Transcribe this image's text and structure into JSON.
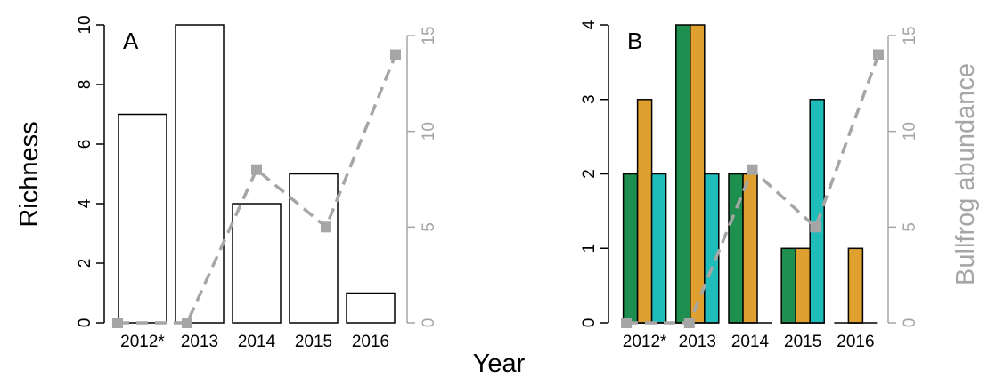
{
  "labels": {
    "y_left": "Richness",
    "y_right": "Bullfrog abundance",
    "x": "Year"
  },
  "colors": {
    "axis": "#000000",
    "right_axis": "#a6a6a6",
    "abundance_line": "#a6a6a6",
    "bar_outline": "#000000"
  },
  "chart_data": [
    {
      "type": "bar",
      "panel_label": "A",
      "categories": [
        "2012*",
        "2013",
        "2014",
        "2015",
        "2016"
      ],
      "ylabel": "Richness",
      "ylim": [
        0,
        10
      ],
      "yticks": [
        0,
        2,
        4,
        6,
        8,
        10
      ],
      "series": [
        {
          "values": [
            7,
            10,
            4,
            5,
            1
          ],
          "color": "#ffffff"
        }
      ],
      "overlay": {
        "type": "line",
        "style": "dashed",
        "marker": "square",
        "color": "#a6a6a6",
        "values": [
          0,
          0,
          8,
          5,
          14
        ],
        "ylabel": "Bullfrog abundance",
        "ylim": [
          0,
          15
        ],
        "yticks": [
          0,
          5,
          10,
          15
        ]
      },
      "xlabel": "Year",
      "grid": false
    },
    {
      "type": "bar",
      "panel_label": "B",
      "categories": [
        "2012*",
        "2013",
        "2014",
        "2015",
        "2016"
      ],
      "ylabel": "Richness",
      "ylim": [
        0,
        4
      ],
      "yticks": [
        0,
        1,
        2,
        3,
        4
      ],
      "series": [
        {
          "values": [
            2,
            4,
            2,
            1,
            0
          ],
          "color": "#1e8f4e"
        },
        {
          "values": [
            3,
            4,
            2,
            1,
            1
          ],
          "color": "#e0a030"
        },
        {
          "values": [
            2,
            2,
            0,
            3,
            0
          ],
          "color": "#1fbdb9"
        }
      ],
      "overlay": {
        "type": "line",
        "style": "dashed",
        "marker": "square",
        "color": "#a6a6a6",
        "values": [
          0,
          0,
          8,
          5,
          14
        ],
        "ylabel": "Bullfrog abundance",
        "ylim": [
          0,
          15
        ],
        "yticks": [
          0,
          5,
          10,
          15
        ]
      },
      "xlabel": "Year",
      "grid": false
    }
  ]
}
